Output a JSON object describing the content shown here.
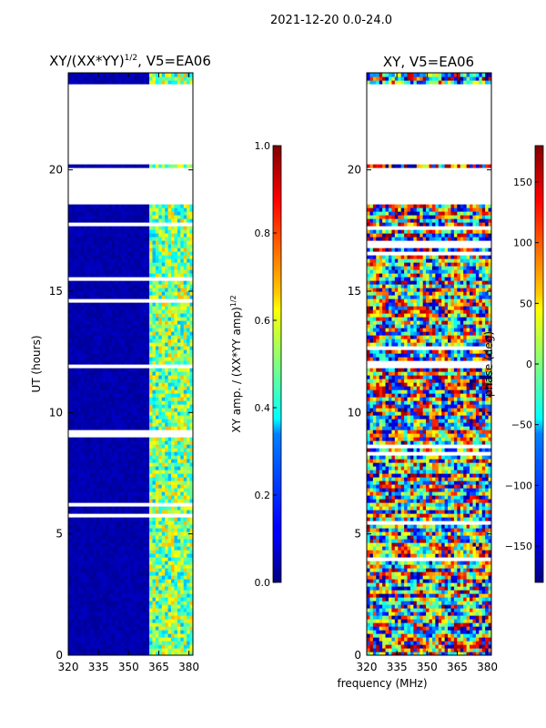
{
  "suptitle": "2021-12-20 0.0-24.0",
  "chart_data": [
    {
      "type": "heatmap",
      "title": "XY/(XX*YY)",
      "title_exponent": "1/2",
      "title_suffix": ", V5=EA06",
      "xlabel": "",
      "ylabel": "UT (hours)",
      "xlim": [
        320,
        382
      ],
      "ylim": [
        0,
        24
      ],
      "xticks": [
        320,
        335,
        350,
        365,
        380
      ],
      "yticks": [
        0,
        5,
        10,
        15,
        20
      ],
      "colormap": "jet",
      "data_band_start_mhz": 360,
      "no_data_ranges_ut": [
        [
          18.5,
          20.0
        ],
        [
          20.1,
          23.5
        ]
      ],
      "colorbar": {
        "label": "XY amp. / (XX*YY amp)",
        "label_exponent": "1/2",
        "range": [
          0.0,
          1.0
        ],
        "ticks": [
          "0.0",
          "0.2",
          "0.4",
          "0.6",
          "0.8",
          "1.0"
        ]
      }
    },
    {
      "type": "heatmap",
      "title": "XY, V5=EA06",
      "xlabel": "frequency (MHz)",
      "ylabel": "",
      "xlim": [
        320,
        382
      ],
      "ylim": [
        0,
        24
      ],
      "xticks": [
        320,
        335,
        350,
        365,
        380
      ],
      "yticks": [
        0,
        5,
        10,
        15,
        20
      ],
      "colormap": "jet",
      "no_data_ranges_ut": [
        [
          18.5,
          20.0
        ],
        [
          20.1,
          23.5
        ]
      ],
      "colorbar": {
        "label": "phase (deg)",
        "range": [
          -180,
          180
        ],
        "ticks": [
          "−150",
          "−100",
          "−50",
          "0",
          "50",
          "100",
          "150"
        ]
      }
    }
  ]
}
